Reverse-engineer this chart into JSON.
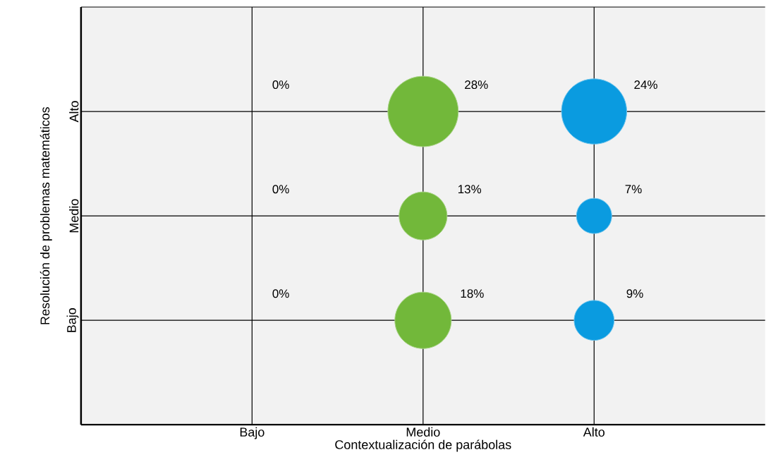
{
  "chart_data": {
    "type": "other",
    "xlabel": "Contextualización de parábolas",
    "ylabel": "Resolución de problemas matemáticos",
    "categories": [
      "Bajo",
      "Medio",
      "Alto"
    ],
    "series": [
      {
        "name": "Alto",
        "colors": [
          null,
          "#72b83a",
          "#0a9be0"
        ],
        "values": [
          0,
          28,
          24
        ],
        "value_labels": [
          "0%",
          "28%",
          "24%"
        ]
      },
      {
        "name": "Medio",
        "colors": [
          null,
          "#72b83a",
          "#0a9be0"
        ],
        "values": [
          0,
          13,
          7
        ],
        "value_labels": [
          "0%",
          "13%",
          "7%"
        ]
      },
      {
        "name": "Bajo",
        "colors": [
          null,
          "#72b83a",
          "#0a9be0"
        ],
        "values": [
          0,
          18,
          9
        ],
        "value_labels": [
          "0%",
          "18%",
          "9%"
        ]
      }
    ]
  }
}
